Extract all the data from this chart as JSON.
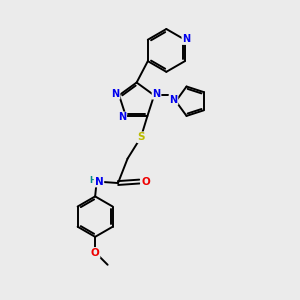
{
  "bg_color": "#ebebeb",
  "atom_colors": {
    "C": "#000000",
    "N": "#0000ee",
    "O": "#ee0000",
    "S": "#bbbb00",
    "H": "#008888"
  },
  "bond_color": "#000000",
  "bond_width": 1.4,
  "figsize": [
    3.0,
    3.0
  ],
  "dpi": 100
}
